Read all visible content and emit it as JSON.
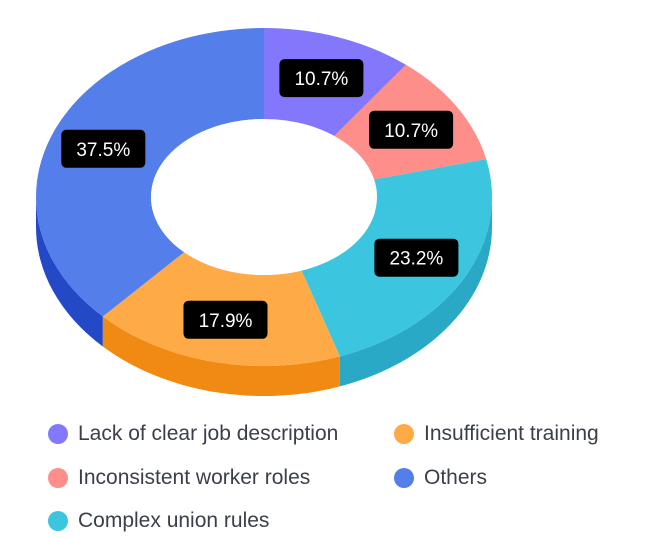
{
  "chart_data": {
    "type": "pie",
    "style": "3d-donut",
    "title": "",
    "slices": [
      {
        "label": "Lack of clear job description",
        "value": 10.7,
        "display": "10.7%",
        "color": "#8378fb",
        "side": "#4a3dd6"
      },
      {
        "label": "Inconsistent worker roles",
        "value": 10.7,
        "display": "10.7%",
        "color": "#fd8e8a",
        "side": "#e23a2f"
      },
      {
        "label": "Complex union rules",
        "value": 23.2,
        "display": "23.2%",
        "color": "#3cc5de",
        "side": "#2aa9c7"
      },
      {
        "label": "Insufficient training",
        "value": 17.9,
        "display": "17.9%",
        "color": "#feaa47",
        "side": "#f08a12"
      },
      {
        "label": "Others",
        "value": 37.5,
        "display": "37.5%",
        "color": "#547ee9",
        "side": "#2349c6"
      }
    ],
    "legend_position": "bottom",
    "legend": [
      "Lack of clear job description",
      "Insufficient training",
      "Inconsistent worker roles",
      "Others",
      "Complex union rules"
    ]
  }
}
